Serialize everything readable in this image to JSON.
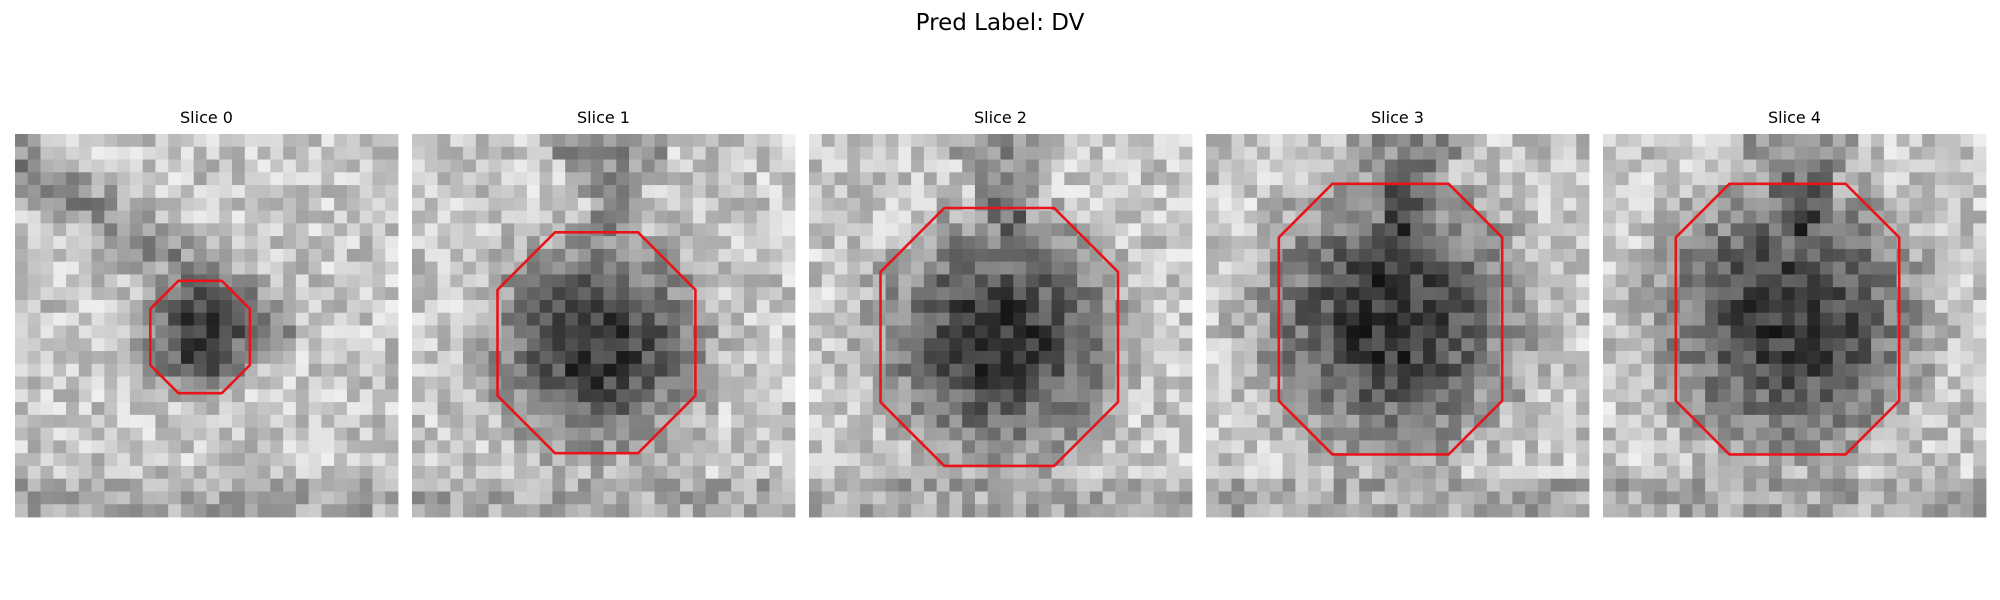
{
  "title": "Pred Label: DV",
  "panels": [
    {
      "title": "Slice 0"
    },
    {
      "title": "Slice 1"
    },
    {
      "title": "Slice 2"
    },
    {
      "title": "Slice 3"
    },
    {
      "title": "Slice 4"
    }
  ]
}
